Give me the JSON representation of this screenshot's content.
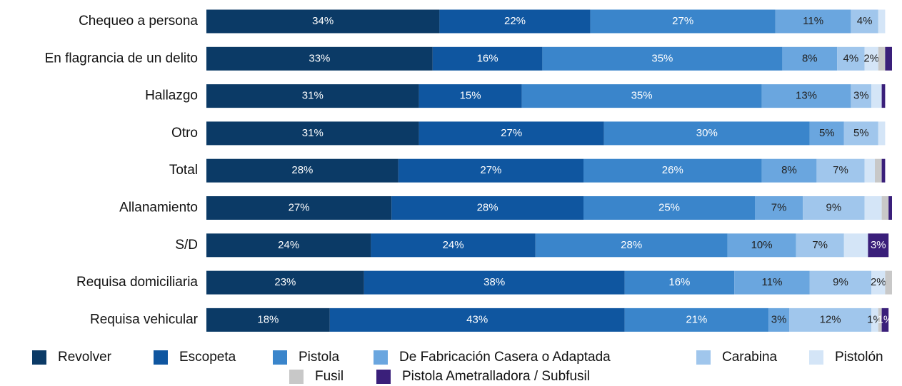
{
  "chart_data": {
    "type": "stacked_bar_horizontal",
    "categories": [
      "Chequeo a persona",
      "En flagrancia de un delito",
      "Hallazgo",
      "Otro",
      "Total",
      "Allanamiento",
      "S/D",
      "Requisa domiciliaria",
      "Requisa vehicular"
    ],
    "xlim": [
      0,
      100
    ],
    "series": [
      {
        "name": "Revolver",
        "color": "#0b3a66",
        "values": [
          34,
          33,
          31,
          31,
          28,
          27,
          24,
          23,
          18
        ],
        "value_labels": [
          "34%",
          "33%",
          "31%",
          "31%",
          "28%",
          "27%",
          "24%",
          "23%",
          "18%"
        ]
      },
      {
        "name": "Escopeta",
        "color": "#0f56a0",
        "values": [
          22,
          16,
          15,
          27,
          27,
          28,
          24,
          38,
          43
        ],
        "value_labels": [
          "22%",
          "16%",
          "15%",
          "27%",
          "27%",
          "28%",
          "24%",
          "38%",
          "43%"
        ]
      },
      {
        "name": "Pistola",
        "color": "#3a85cb",
        "values": [
          27,
          35,
          35,
          30,
          26,
          25,
          28,
          16,
          21
        ],
        "value_labels": [
          "27%",
          "35%",
          "35%",
          "30%",
          "26%",
          "25%",
          "28%",
          "16%",
          "21%"
        ]
      },
      {
        "name": "De Fabricación Casera o Adaptada",
        "color": "#6aa6df",
        "values": [
          11,
          8,
          13,
          5,
          8,
          7,
          10,
          11,
          3
        ],
        "value_labels": [
          "11%",
          "8%",
          "13%",
          "5%",
          "8%",
          "7%",
          "10%",
          "11%",
          "3%"
        ]
      },
      {
        "name": "Carabina",
        "color": "#a0c6ec",
        "values": [
          4,
          4,
          3,
          5,
          7,
          9,
          7,
          9,
          12
        ],
        "value_labels": [
          "4%",
          "4%",
          "3%",
          "5%",
          "7%",
          "9%",
          "7%",
          "9%",
          "12%"
        ]
      },
      {
        "name": "Pistolón",
        "color": "#d4e5f7",
        "values": [
          1,
          2,
          1.5,
          1,
          1.5,
          2.5,
          3.5,
          2,
          1
        ],
        "value_labels": [
          null,
          "2%",
          null,
          null,
          null,
          null,
          null,
          "2%",
          "1%"
        ]
      },
      {
        "name": "Fusil",
        "color": "#c8c8c8",
        "values": [
          0,
          1,
          0,
          0,
          1,
          1,
          0,
          1,
          0.5
        ],
        "value_labels": [
          null,
          null,
          null,
          null,
          null,
          null,
          null,
          null,
          null
        ]
      },
      {
        "name": "Pistola Ametralladora / Subfusil",
        "color": "#3a1f7a",
        "values": [
          0,
          1,
          0.5,
          0,
          0.5,
          0.5,
          3,
          0,
          1
        ],
        "value_labels": [
          null,
          null,
          null,
          null,
          null,
          null,
          "3%",
          null,
          "1%"
        ]
      }
    ]
  }
}
